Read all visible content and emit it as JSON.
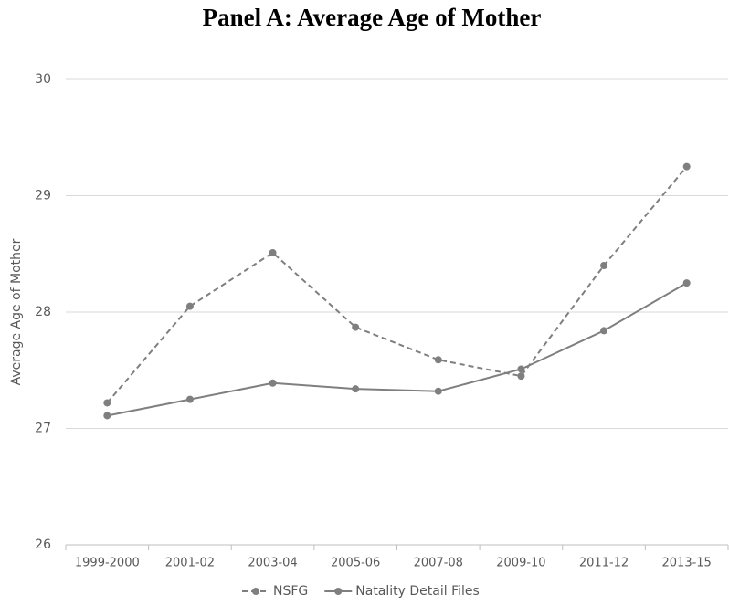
{
  "chart_data": {
    "type": "line",
    "title": "Panel A:  Average Age of Mother",
    "y_label": "Average Age of Mother",
    "categories": [
      "1999-2000",
      "2001-02",
      "2003-04",
      "2005-06",
      "2007-08",
      "2009-10",
      "2011-12",
      "2013-15"
    ],
    "series": [
      {
        "name": "NSFG",
        "color": "#7f7f7f",
        "dashed": true,
        "values": [
          27.22,
          28.05,
          28.51,
          27.87,
          27.59,
          27.45,
          28.4,
          29.25
        ]
      },
      {
        "name": "Natality Detail Files",
        "color": "#7f7f7f",
        "dashed": false,
        "values": [
          27.11,
          27.25,
          27.39,
          27.34,
          27.32,
          27.51,
          27.84,
          28.25
        ]
      }
    ],
    "ylim": [
      26,
      30
    ],
    "yticks": [
      26,
      27,
      28,
      29,
      30
    ],
    "grid": true,
    "legend": "bottom"
  }
}
